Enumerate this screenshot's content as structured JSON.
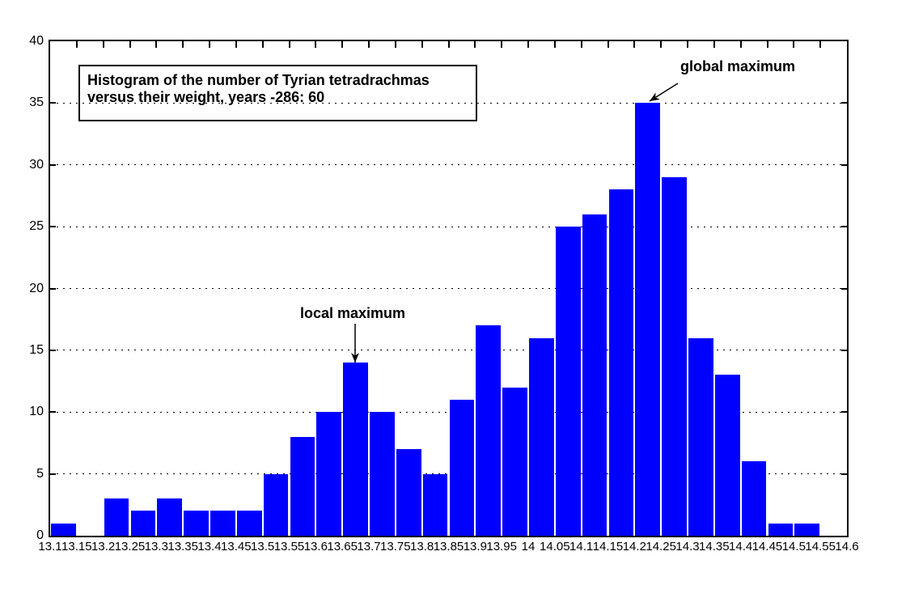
{
  "chart_data": {
    "type": "bar",
    "subtype": "histogram",
    "title_line1": "Histogram of the number of Tyrian tetradrachmas",
    "title_line2": "versus their weight, years -286: 60",
    "xlabel": "",
    "ylabel": "",
    "xlim": [
      13.1,
      14.6
    ],
    "ylim": [
      0,
      40
    ],
    "bin_width": 0.05,
    "bin_start": 13.1,
    "x_tick_labels": [
      "13.1",
      "13.15",
      "13.2",
      "13.25",
      "13.3",
      "13.35",
      "13.4",
      "13.45",
      "13.5",
      "13.55",
      "13.6",
      "13.65",
      "13.7",
      "13.75",
      "13.8",
      "13.85",
      "13.9",
      "13.95",
      "14",
      "14.05",
      "14.1",
      "14.15",
      "14.2",
      "14.25",
      "14.3",
      "14.35",
      "14.4",
      "14.45",
      "14.5",
      "14.55",
      "14.6"
    ],
    "y_ticks": [
      0,
      5,
      10,
      15,
      20,
      25,
      30,
      35,
      40
    ],
    "values": [
      1,
      0,
      3,
      2,
      3,
      2,
      2,
      2,
      5,
      8,
      10,
      14,
      10,
      7,
      5,
      11,
      17,
      12,
      16,
      25,
      26,
      28,
      35,
      29,
      16,
      13,
      6,
      1,
      1,
      0
    ],
    "bar_color": "#0000ff",
    "bar_gap_color": "#ffffff",
    "grid": "horizontal dotted at each y tick",
    "legend": "none",
    "annotations": [
      {
        "label": "local maximum",
        "points_to_bin": "13.65-13.7",
        "points_to_value": 14
      },
      {
        "label": "global maximum",
        "points_to_bin": "14.2-14.25",
        "points_to_value": 35
      }
    ]
  }
}
